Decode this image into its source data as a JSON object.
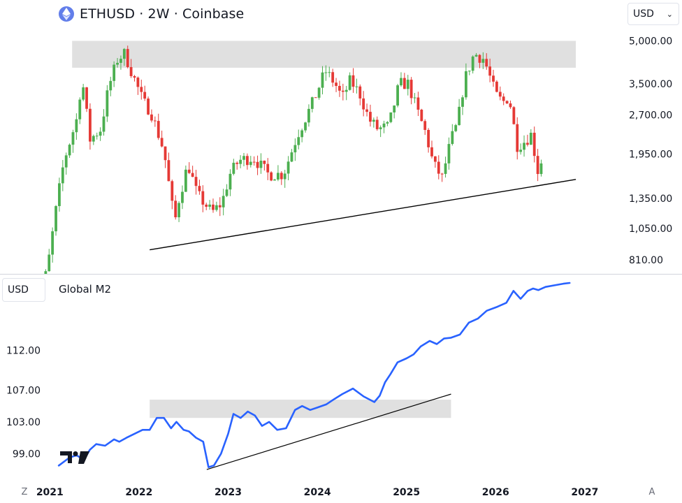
{
  "header": {
    "title": "ETHUSD · 2W · Coinbase",
    "icon": "ethereum-icon"
  },
  "currency_select": {
    "value": "USD",
    "icon": "chevron-down-icon"
  },
  "lower_pane": {
    "unit": "USD",
    "label": "Global M2"
  },
  "controls": {
    "left": "Z",
    "right": "A"
  },
  "branding": {
    "logo": "tradingview-logo"
  },
  "colors": {
    "up": "#4caf50",
    "down": "#e53935",
    "m2_line": "#2962ff",
    "zone": "#e0e0e0",
    "trendline": "#000000"
  },
  "chart_data": [
    {
      "type": "candlestick",
      "title": "ETHUSD · 2W · Coinbase",
      "scale": "log",
      "ylim": [
        700,
        5600
      ],
      "xlim": [
        2020.88,
        2027.15
      ],
      "y_ticks": [
        810,
        1050,
        1350,
        1950,
        2700,
        3500,
        5000
      ],
      "y_tick_labels": [
        "810.00",
        "1,050.00",
        "1,350.00",
        "1,950.00",
        "2,700.00",
        "3,500.00",
        "5,000.00"
      ],
      "grid": false,
      "resistance_zone": {
        "x": [
          2021.25,
          2026.9
        ],
        "y": [
          4000,
          5000
        ]
      },
      "support_trendline": {
        "x": [
          2022.12,
          2026.9
        ],
        "y": [
          880,
          1580
        ]
      },
      "ohlc_waypoints": {
        "dates": [
          2020.8,
          2020.97,
          2021.08,
          2021.16,
          2021.3,
          2021.36,
          2021.45,
          2021.57,
          2021.66,
          2021.76,
          2021.84,
          2021.94,
          2022.05,
          2022.13,
          2022.28,
          2022.4,
          2022.45,
          2022.55,
          2022.65,
          2022.82,
          2022.93,
          2023.02,
          2023.12,
          2023.28,
          2023.45,
          2023.62,
          2023.78,
          2023.95,
          2024.09,
          2024.2,
          2024.28,
          2024.37,
          2024.48,
          2024.58,
          2024.68,
          2024.8,
          2024.92,
          2025.02,
          2025.12,
          2025.22,
          2025.3,
          2025.4,
          2025.5,
          2025.57,
          2025.65,
          2025.76,
          2025.87,
          2026.0,
          2026.08,
          2026.15,
          2026.24,
          2026.31,
          2026.4,
          2026.48,
          2026.52
        ],
        "close": [
          500,
          740,
          1300,
          1850,
          2600,
          3700,
          2200,
          2400,
          3400,
          4300,
          4500,
          3700,
          3000,
          2800,
          2000,
          1100,
          1350,
          1800,
          1400,
          1200,
          1300,
          1650,
          1850,
          1900,
          1650,
          1650,
          2300,
          3000,
          3900,
          3500,
          3100,
          3600,
          3200,
          2600,
          2400,
          2450,
          3500,
          3500,
          2800,
          2300,
          1800,
          1600,
          2200,
          2500,
          3600,
          4500,
          4300,
          3200,
          3000,
          3150,
          2100,
          2150,
          2300,
          1650,
          1900
        ]
      }
    },
    {
      "type": "line",
      "series": [
        {
          "name": "Global M2"
        }
      ],
      "ylim": [
        95.6,
        120.5
      ],
      "xlim": [
        2020.88,
        2027.15
      ],
      "y_ticks": [
        99,
        103,
        107,
        112
      ],
      "y_tick_labels": [
        "99.00",
        "103.00",
        "107.00",
        "112.00"
      ],
      "x_ticks": [
        2021,
        2022,
        2023,
        2024,
        2025,
        2026,
        2027
      ],
      "x_tick_labels": [
        "2021",
        "2022",
        "2023",
        "2024",
        "2025",
        "2026",
        "2027"
      ],
      "consolidation_zone": {
        "x": [
          2022.12,
          2025.5
        ],
        "y": [
          103.5,
          105.8
        ]
      },
      "support_trendline": {
        "x": [
          2022.76,
          2025.5
        ],
        "y": [
          97.0,
          106.5
        ]
      },
      "x": [
        2021.1,
        2021.22,
        2021.3,
        2021.38,
        2021.45,
        2021.52,
        2021.62,
        2021.72,
        2021.78,
        2021.86,
        2021.95,
        2022.04,
        2022.12,
        2022.2,
        2022.28,
        2022.36,
        2022.42,
        2022.5,
        2022.56,
        2022.64,
        2022.72,
        2022.78,
        2022.84,
        2022.92,
        2023.0,
        2023.06,
        2023.14,
        2023.22,
        2023.3,
        2023.38,
        2023.46,
        2023.55,
        2023.65,
        2023.75,
        2023.83,
        2023.92,
        2024.0,
        2024.1,
        2024.18,
        2024.28,
        2024.4,
        2024.52,
        2024.64,
        2024.7,
        2024.76,
        2024.82,
        2024.9,
        2025.0,
        2025.08,
        2025.16,
        2025.26,
        2025.34,
        2025.42,
        2025.5,
        2025.6,
        2025.7,
        2025.8,
        2025.9,
        2026.02,
        2026.12,
        2026.2,
        2026.28,
        2026.36,
        2026.42,
        2026.48,
        2026.56,
        2026.66,
        2026.76,
        2026.83
      ],
      "values": [
        97.5,
        98.5,
        98.8,
        98.2,
        99.5,
        100.2,
        100.0,
        100.8,
        100.5,
        101.0,
        101.5,
        102.0,
        102.0,
        103.5,
        103.5,
        102.2,
        103.0,
        102.0,
        101.8,
        101.0,
        100.5,
        97.3,
        97.5,
        99.0,
        101.5,
        104.0,
        103.5,
        104.3,
        103.8,
        102.5,
        103.0,
        102.0,
        102.2,
        104.5,
        105.0,
        104.5,
        104.8,
        105.2,
        105.8,
        106.5,
        107.2,
        106.2,
        105.5,
        106.3,
        108.0,
        109.0,
        110.5,
        111.0,
        111.5,
        112.5,
        113.2,
        112.8,
        113.5,
        113.6,
        114.0,
        115.5,
        116.0,
        117.0,
        117.5,
        118.0,
        119.5,
        118.5,
        119.5,
        119.8,
        119.6,
        120.0,
        120.2,
        120.4,
        120.5
      ]
    }
  ]
}
